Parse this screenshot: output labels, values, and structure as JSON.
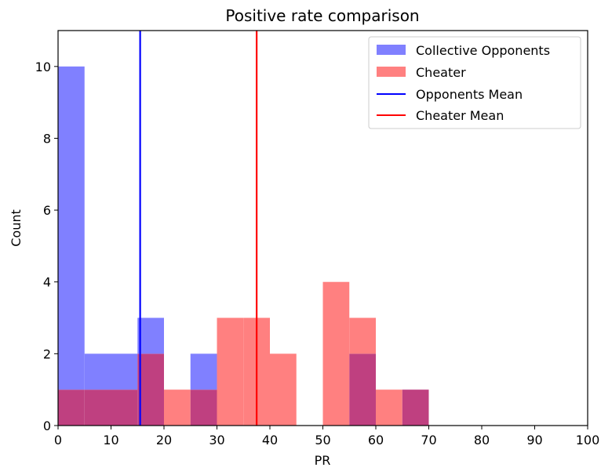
{
  "chart_data": {
    "type": "bar",
    "title": "Positive rate comparison",
    "xlabel": "PR",
    "ylabel": "Count",
    "xlim": [
      0,
      100
    ],
    "ylim": [
      0,
      11
    ],
    "x_ticks": [
      0,
      10,
      20,
      30,
      40,
      50,
      60,
      70,
      80,
      90,
      100
    ],
    "y_ticks": [
      0,
      2,
      4,
      6,
      8,
      10
    ],
    "grid": false,
    "legend_position": "top-right",
    "bin_edges": [
      0,
      5,
      10,
      15,
      20,
      25,
      30,
      35,
      40,
      45,
      50,
      55,
      60,
      65,
      70
    ],
    "series": [
      {
        "name": "Collective Opponents",
        "kind": "histogram",
        "color": "#8080ff",
        "counts": [
          10,
          2,
          2,
          3,
          0,
          2,
          0,
          0,
          0,
          0,
          0,
          2,
          0,
          1
        ]
      },
      {
        "name": "Cheater",
        "kind": "histogram",
        "color": "#ff8080",
        "counts": [
          1,
          1,
          1,
          2,
          1,
          1,
          3,
          3,
          2,
          0,
          4,
          3,
          1,
          1
        ]
      }
    ],
    "overlap_color": "#bf4080",
    "mean_lines": [
      {
        "name": "Opponents Mean",
        "x": 15.5,
        "color": "#0000ff"
      },
      {
        "name": "Cheater Mean",
        "x": 37.5,
        "color": "#ff0000"
      }
    ]
  }
}
